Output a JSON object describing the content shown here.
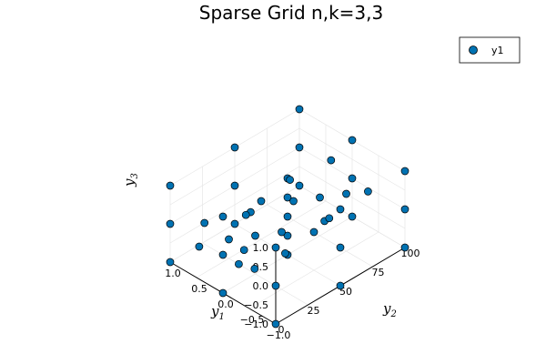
{
  "chart_data": {
    "type": "scatter",
    "projection": "3d",
    "title": "Sparse Grid n,k=3,3",
    "xlabel": {
      "base": "y",
      "sub": "1"
    },
    "ylabel": {
      "base": "y",
      "sub": "2"
    },
    "zlabel": {
      "base": "y",
      "sub": "3"
    },
    "xlim": [
      -1.0,
      1.0
    ],
    "ylim": [
      0,
      100
    ],
    "zlim": [
      -1.0,
      1.0
    ],
    "x_ticks": [
      "−1.0",
      "−0.5",
      "0.0",
      "0.5",
      "1.0"
    ],
    "y_ticks": [
      "0",
      "25",
      "50",
      "75",
      "100"
    ],
    "z_ticks": [
      "−1.0",
      "−0.5",
      "0.0",
      "0.5",
      "1.0"
    ],
    "grid": true,
    "legend": {
      "position": "top-right",
      "entries": [
        "y1"
      ]
    },
    "marker_color": "#0072b2",
    "series": [
      {
        "name": "y1",
        "points": [
          [
            0.0,
            0,
            0.0
          ],
          [
            -0.3,
            0,
            0.0
          ],
          [
            -1.0,
            0,
            -1.0
          ],
          [
            -1.0,
            0,
            0.0
          ],
          [
            -1.0,
            0,
            1.0
          ],
          [
            1.0,
            0,
            -1.0
          ],
          [
            1.0,
            0,
            0.0
          ],
          [
            1.0,
            0,
            1.0
          ],
          [
            0.0,
            0,
            -1.0
          ],
          [
            0.0,
            0,
            1.0
          ],
          [
            -0.6,
            0,
            0.12
          ],
          [
            0.45,
            0,
            -0.15
          ],
          [
            -0.4,
            0,
            0.45
          ],
          [
            0.35,
            0,
            0.55
          ],
          [
            0.0,
            50,
            0.0
          ],
          [
            -1.0,
            50,
            -1.0
          ],
          [
            -1.0,
            50,
            0.0
          ],
          [
            -1.0,
            50,
            1.0
          ],
          [
            1.0,
            50,
            -1.0
          ],
          [
            1.0,
            50,
            0.0
          ],
          [
            1.0,
            50,
            1.0
          ],
          [
            0.0,
            50,
            -1.0
          ],
          [
            0.0,
            50,
            1.0
          ],
          [
            -0.5,
            50,
            0.0
          ],
          [
            0.5,
            50,
            0.0
          ],
          [
            0.0,
            50,
            -0.5
          ],
          [
            0.0,
            50,
            0.5
          ],
          [
            -0.7,
            50,
            0.45
          ],
          [
            0.7,
            50,
            -0.45
          ],
          [
            0.0,
            100,
            0.0
          ],
          [
            -1.0,
            100,
            -1.0
          ],
          [
            -1.0,
            100,
            0.0
          ],
          [
            -1.0,
            100,
            1.0
          ],
          [
            1.0,
            100,
            -1.0
          ],
          [
            1.0,
            100,
            0.0
          ],
          [
            1.0,
            100,
            1.0
          ],
          [
            0.0,
            100,
            -1.0
          ],
          [
            0.0,
            100,
            1.0
          ],
          [
            0.4,
            100,
            0.15
          ],
          [
            -0.3,
            100,
            -0.1
          ],
          [
            0.0,
            25,
            0.0
          ],
          [
            0.0,
            75,
            0.0
          ],
          [
            -0.5,
            25,
            0.5
          ],
          [
            0.5,
            75,
            -0.5
          ],
          [
            -0.5,
            75,
            0.5
          ],
          [
            0.5,
            25,
            -0.5
          ],
          [
            0.3,
            30,
            0.2
          ],
          [
            -0.3,
            70,
            -0.2
          ],
          [
            0.2,
            60,
            0.6
          ],
          [
            -0.2,
            40,
            -0.6
          ]
        ]
      }
    ]
  }
}
